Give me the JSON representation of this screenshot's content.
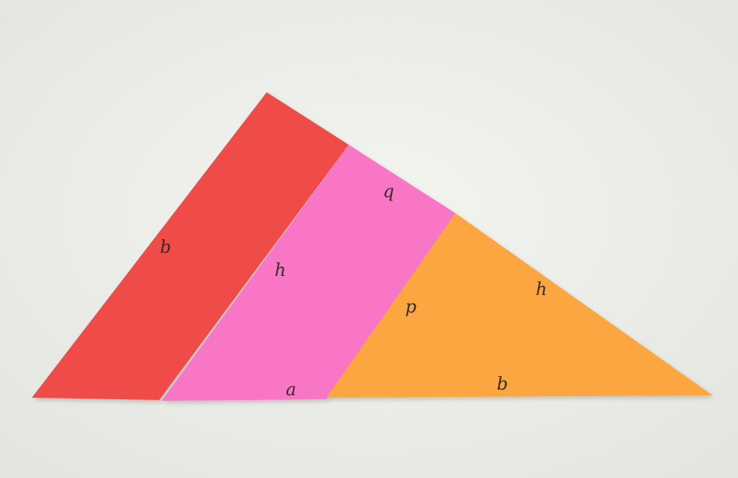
{
  "photo": {
    "background_color": "#eceee9",
    "pieces": [
      {
        "name": "red-triangle",
        "color": "#ef4b48",
        "labels": [
          "b"
        ]
      },
      {
        "name": "pink-parallelogram",
        "color": "#f976c6",
        "labels": [
          "q",
          "h",
          "a"
        ]
      },
      {
        "name": "orange-triangle",
        "color": "#fba63f",
        "labels": [
          "p",
          "h",
          "b"
        ]
      }
    ]
  }
}
